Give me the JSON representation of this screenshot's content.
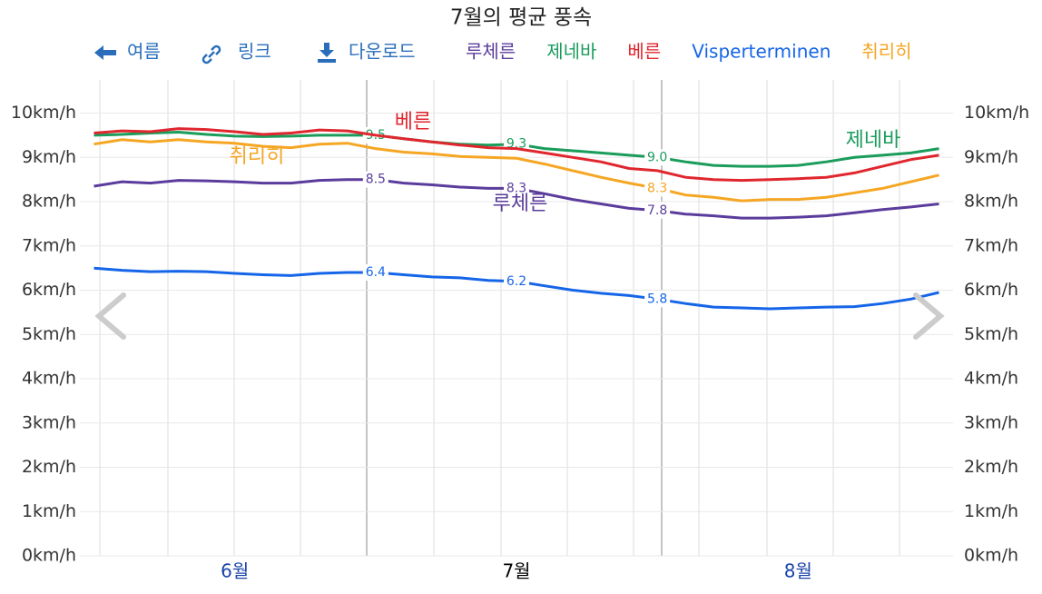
{
  "chart_data": {
    "type": "line",
    "title": "7월의 평균 풍속",
    "toolbar": [
      "여름",
      "링크",
      "다운로드"
    ],
    "categories": [
      null,
      null,
      null,
      null,
      null,
      "6월",
      null,
      null,
      null,
      null,
      null,
      null,
      null,
      null,
      null,
      "7월",
      null,
      null,
      null,
      null,
      null,
      null,
      null,
      null,
      null,
      "8월",
      null,
      null,
      null,
      null,
      null
    ],
    "ylim": [
      0,
      10.75
    ],
    "yticks": [
      {
        "value": 0,
        "label": "0km/h"
      },
      {
        "value": 1,
        "label": "1km/h"
      },
      {
        "value": 2,
        "label": "2km/h"
      },
      {
        "value": 3,
        "label": "3km/h"
      },
      {
        "value": 4,
        "label": "4km/h"
      },
      {
        "value": 5,
        "label": "5km/h"
      },
      {
        "value": 6,
        "label": "6km/h"
      },
      {
        "value": 7,
        "label": "7km/h"
      },
      {
        "value": 8,
        "label": "8km/h"
      },
      {
        "value": 9,
        "label": "9km/h"
      },
      {
        "value": 10,
        "label": "10km/h"
      }
    ],
    "grid": true,
    "series": [
      {
        "name": "루체른",
        "color": "#5b3c9c",
        "values": [
          8.35,
          8.45,
          8.42,
          8.48,
          8.47,
          8.45,
          8.42,
          8.42,
          8.48,
          8.5,
          8.5,
          8.42,
          8.38,
          8.33,
          8.3,
          8.3,
          8.18,
          8.05,
          7.95,
          7.85,
          7.8,
          7.72,
          7.68,
          7.63,
          7.63,
          7.65,
          7.68,
          7.75,
          7.82,
          7.88,
          7.95
        ],
        "value_labels": [
          null,
          null,
          null,
          null,
          null,
          null,
          null,
          null,
          null,
          null,
          "8.5",
          null,
          null,
          null,
          null,
          "8.3",
          null,
          null,
          null,
          null,
          "7.8",
          null,
          null,
          null,
          null,
          null,
          null,
          null,
          null,
          null,
          null
        ]
      },
      {
        "name": "제네바",
        "color": "#1a9c5b",
        "values": [
          9.5,
          9.52,
          9.55,
          9.57,
          9.52,
          9.48,
          9.47,
          9.48,
          9.5,
          9.5,
          9.5,
          9.42,
          9.35,
          9.3,
          9.28,
          9.3,
          9.2,
          9.15,
          9.1,
          9.05,
          9.0,
          8.9,
          8.82,
          8.8,
          8.8,
          8.82,
          8.9,
          9.0,
          9.05,
          9.1,
          9.2
        ],
        "value_labels": [
          null,
          null,
          null,
          null,
          null,
          null,
          null,
          null,
          null,
          null,
          "9.5",
          null,
          null,
          null,
          null,
          "9.3",
          null,
          null,
          null,
          null,
          "9.0",
          null,
          null,
          null,
          null,
          null,
          null,
          null,
          null,
          null,
          null
        ]
      },
      {
        "name": "베른",
        "color": "#e0262e",
        "values": [
          9.55,
          9.6,
          9.58,
          9.65,
          9.63,
          9.58,
          9.52,
          9.55,
          9.62,
          9.6,
          9.5,
          9.42,
          9.35,
          9.28,
          9.22,
          9.2,
          9.1,
          9.0,
          8.9,
          8.75,
          8.7,
          8.55,
          8.5,
          8.48,
          8.5,
          8.52,
          8.55,
          8.65,
          8.8,
          8.95,
          9.05
        ]
      },
      {
        "name": "Visperterminen",
        "color": "#1565e8",
        "values": [
          6.5,
          6.45,
          6.42,
          6.43,
          6.42,
          6.38,
          6.35,
          6.33,
          6.38,
          6.4,
          6.4,
          6.35,
          6.3,
          6.28,
          6.22,
          6.2,
          6.1,
          6.0,
          5.93,
          5.88,
          5.8,
          5.7,
          5.62,
          5.6,
          5.58,
          5.6,
          5.62,
          5.63,
          5.7,
          5.8,
          5.95
        ],
        "value_labels": [
          null,
          null,
          null,
          null,
          null,
          null,
          null,
          null,
          null,
          null,
          "6.4",
          null,
          null,
          null,
          null,
          "6.2",
          null,
          null,
          null,
          null,
          "5.8",
          null,
          null,
          null,
          null,
          null,
          null,
          null,
          null,
          null,
          null
        ]
      },
      {
        "name": "취리히",
        "color": "#f5a623",
        "values": [
          9.3,
          9.4,
          9.35,
          9.4,
          9.35,
          9.32,
          9.25,
          9.22,
          9.3,
          9.32,
          9.2,
          9.12,
          9.08,
          9.02,
          9.0,
          8.98,
          8.85,
          8.7,
          8.55,
          8.42,
          8.3,
          8.15,
          8.1,
          8.02,
          8.05,
          8.05,
          8.1,
          8.2,
          8.3,
          8.45,
          8.6
        ],
        "value_labels": [
          null,
          null,
          null,
          null,
          null,
          null,
          null,
          null,
          null,
          null,
          null,
          null,
          null,
          null,
          null,
          null,
          null,
          null,
          null,
          null,
          "8.3",
          null,
          null,
          null,
          null,
          null,
          null,
          null,
          null,
          null,
          null
        ]
      }
    ]
  }
}
